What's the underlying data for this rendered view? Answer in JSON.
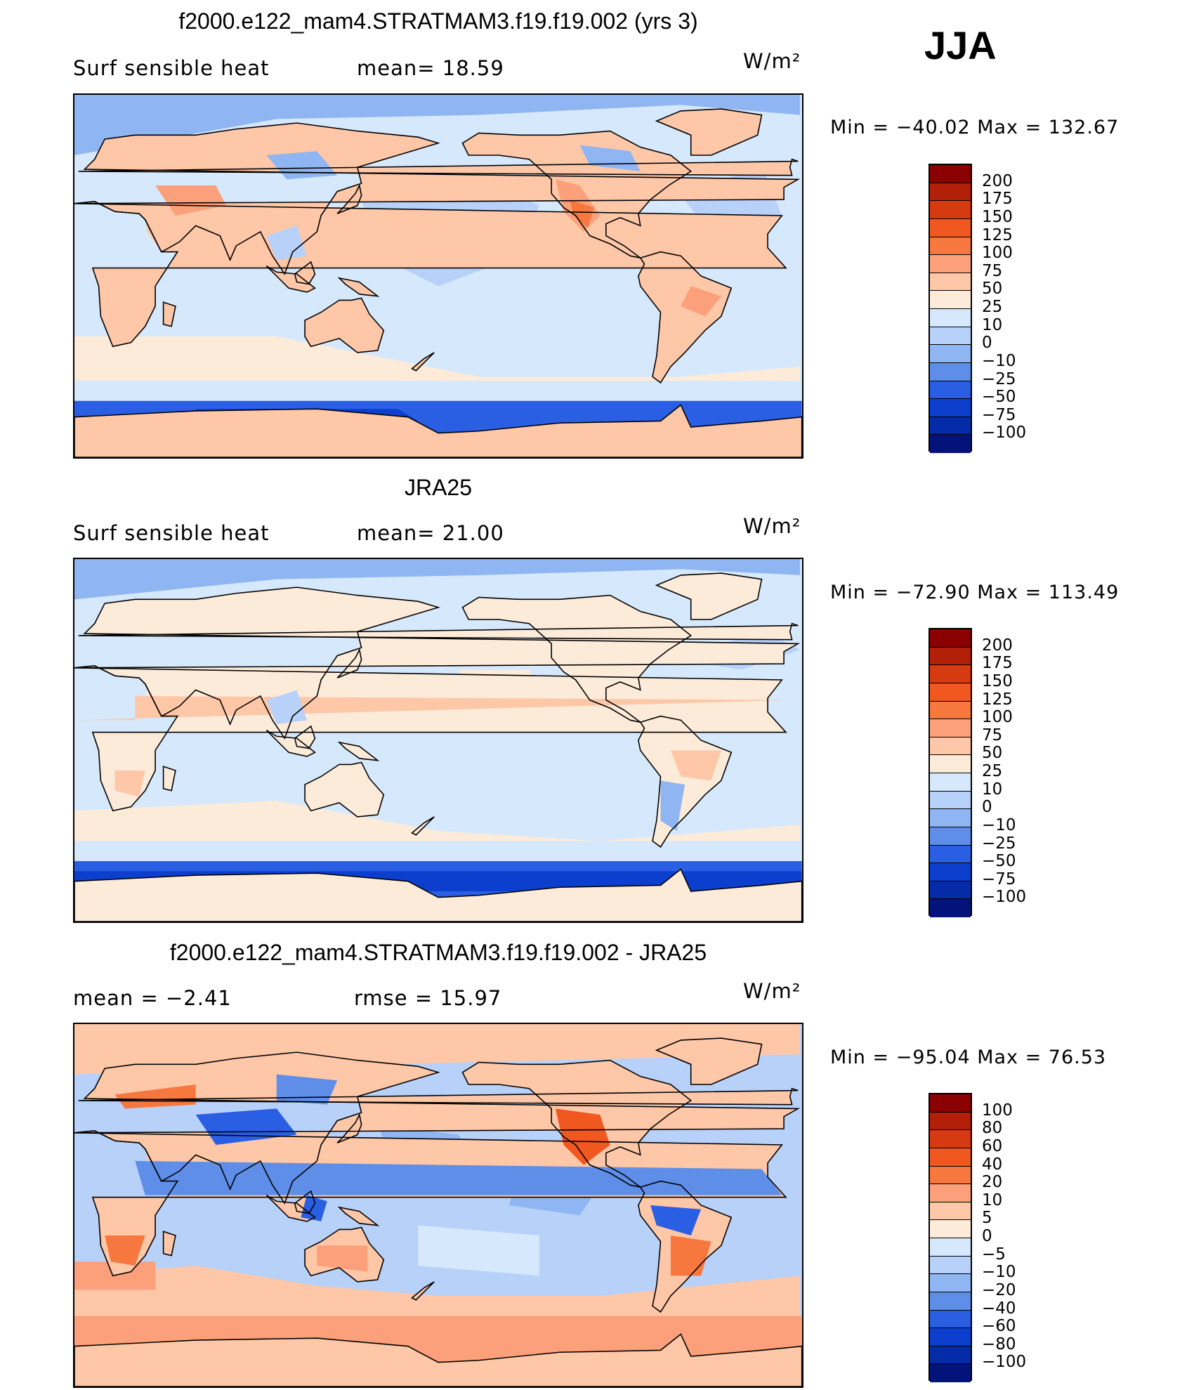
{
  "season": "JJA",
  "panels": [
    {
      "title": "f2000.e122_mam4.STRATMAM3.f19.f19.002 (yrs 3)",
      "left_label": "Surf sensible heat",
      "mid_label": "mean=   18.59",
      "units": "W/m²",
      "minmax": "Min  =  −40.02  Max  =  132.67",
      "colorbar": {
        "labels": [
          "200",
          "175",
          "150",
          "125",
          "100",
          "75",
          "50",
          "25",
          "10",
          "0",
          "−10",
          "−25",
          "−50",
          "−75",
          "−100"
        ],
        "colors": [
          "#8b0000",
          "#b3200a",
          "#d63a10",
          "#f05820",
          "#f7783e",
          "#fba07a",
          "#fdc7a8",
          "#fdebd9",
          "#d6e8fb",
          "#b7d1f8",
          "#8fb5f2",
          "#5f8ee9",
          "#2a5fe3",
          "#0d3fcf",
          "#042ca8",
          "#03137a"
        ]
      },
      "map_scheme": "model"
    },
    {
      "title": "JRA25",
      "left_label": "Surf sensible heat",
      "mid_label": "mean=   21.00",
      "units": "W/m²",
      "minmax": "Min  =  −72.90  Max  =  113.49",
      "colorbar": {
        "labels": [
          "200",
          "175",
          "150",
          "125",
          "100",
          "75",
          "50",
          "25",
          "10",
          "0",
          "−10",
          "−25",
          "−50",
          "−75",
          "−100"
        ],
        "colors": [
          "#8b0000",
          "#b3200a",
          "#d63a10",
          "#f05820",
          "#f7783e",
          "#fba07a",
          "#fdc7a8",
          "#fdebd9",
          "#d6e8fb",
          "#b7d1f8",
          "#8fb5f2",
          "#5f8ee9",
          "#2a5fe3",
          "#0d3fcf",
          "#042ca8",
          "#03137a"
        ]
      },
      "map_scheme": "obs"
    },
    {
      "title": "f2000.e122_mam4.STRATMAM3.f19.f19.002 - JRA25",
      "left_label": "mean  =    −2.41",
      "mid_label": "rmse  =    15.97",
      "units": "W/m²",
      "minmax": "Min  =  −95.04  Max  =   76.53",
      "colorbar": {
        "labels": [
          "100",
          "80",
          "60",
          "40",
          "20",
          "10",
          "5",
          "0",
          "−5",
          "−10",
          "−20",
          "−40",
          "−60",
          "−80",
          "−100"
        ],
        "colors": [
          "#8b0000",
          "#b3200a",
          "#d63a10",
          "#f05820",
          "#f7783e",
          "#fba07a",
          "#fdc7a8",
          "#fdebd9",
          "#d6e8fb",
          "#b7d1f8",
          "#8fb5f2",
          "#5f8ee9",
          "#2a5fe3",
          "#0d3fcf",
          "#042ca8",
          "#03137a"
        ]
      },
      "map_scheme": "diff"
    }
  ]
}
